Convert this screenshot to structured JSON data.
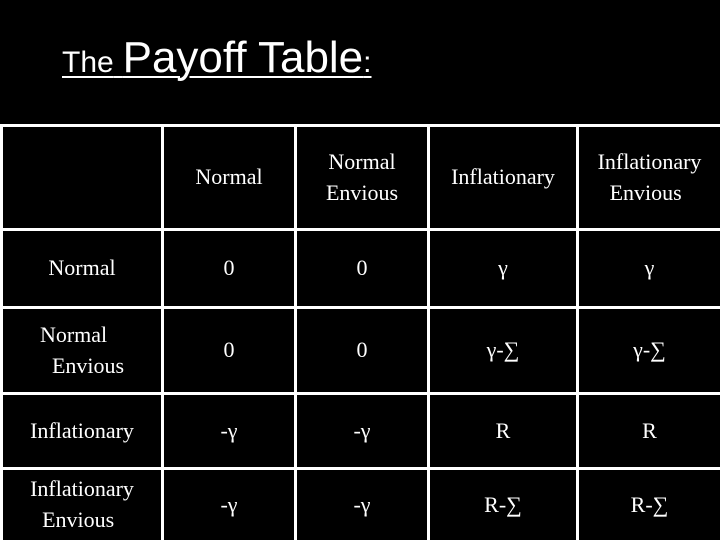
{
  "title": {
    "prefix": "The",
    "main": "Payoff Table",
    "suffix": ":"
  },
  "table": {
    "column_headers": [
      {
        "line1": "Normal",
        "line2": ""
      },
      {
        "line1": "Normal",
        "line2": "Envious"
      },
      {
        "line1": "Inflationary",
        "line2": ""
      },
      {
        "line1": "Inflationary",
        "line2": "Envious"
      }
    ],
    "rows": [
      {
        "header": {
          "line1": "Normal",
          "line2": ""
        },
        "cells": [
          "0",
          "0",
          "γ",
          "γ"
        ]
      },
      {
        "header": {
          "line1": "Normal",
          "line2": "Envious"
        },
        "cells": [
          "0",
          "0",
          "γ-∑",
          "γ-∑"
        ]
      },
      {
        "header": {
          "line1": "Inflationary",
          "line2": ""
        },
        "cells": [
          "-γ",
          "-γ",
          "R",
          "R"
        ]
      },
      {
        "header": {
          "line1": "Inflationary",
          "line2": "Envious"
        },
        "cells": [
          "-γ",
          "-γ",
          "R-∑",
          "R-∑"
        ]
      }
    ]
  }
}
